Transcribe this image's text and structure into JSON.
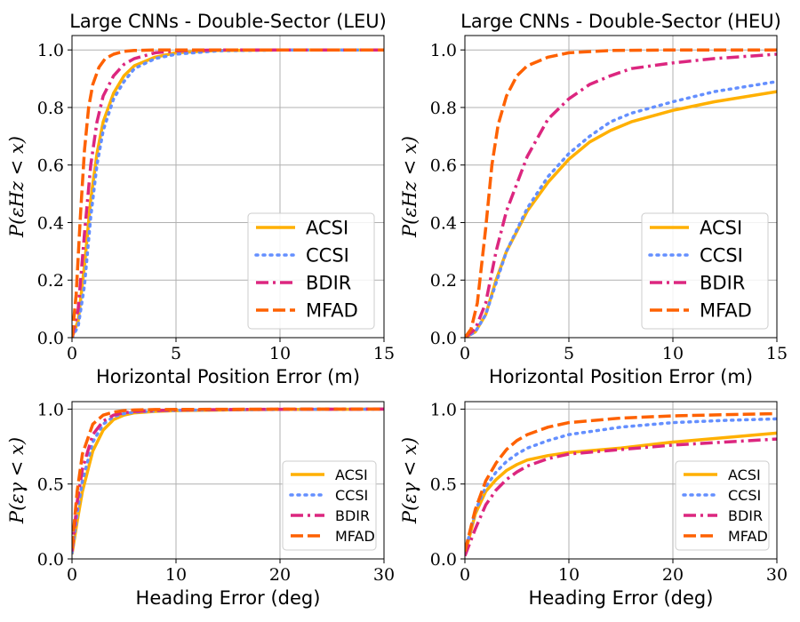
{
  "chart_data": [
    {
      "type": "line",
      "title": "Large CNNs - Double-Sector (LEU)",
      "xlabel": "Horizontal Position Error (m)",
      "ylabel": "P(εHz < x)",
      "xlim": [
        0,
        15
      ],
      "ylim": [
        0,
        1.05
      ],
      "xticks": [
        0,
        5,
        10,
        15
      ],
      "yticks": [
        0.0,
        0.2,
        0.4,
        0.6,
        0.8,
        1.0
      ],
      "xtick_labels": [
        "0",
        "5",
        "10",
        "15"
      ],
      "ytick_labels": [
        "0.0",
        "0.2",
        "0.4",
        "0.6",
        "0.8",
        "1.0"
      ],
      "grid": true,
      "legend": "bottom-right",
      "series": [
        {
          "name": "ACSI",
          "x": [
            0,
            0.3,
            0.6,
            0.9,
            1.2,
            1.5,
            2.0,
            2.5,
            3.0,
            4.0,
            5.0,
            7.0,
            10.0,
            15.0
          ],
          "values": [
            0,
            0.06,
            0.25,
            0.48,
            0.64,
            0.75,
            0.85,
            0.91,
            0.945,
            0.975,
            0.99,
            0.998,
            1.0,
            1.0
          ]
        },
        {
          "name": "CCSI",
          "x": [
            0,
            0.3,
            0.6,
            0.9,
            1.2,
            1.5,
            2.0,
            2.5,
            3.0,
            4.0,
            5.0,
            7.0,
            10.0,
            15.0
          ],
          "values": [
            0,
            0.04,
            0.18,
            0.42,
            0.6,
            0.72,
            0.83,
            0.89,
            0.935,
            0.97,
            0.985,
            0.997,
            1.0,
            1.0
          ]
        },
        {
          "name": "BDIR",
          "x": [
            0,
            0.3,
            0.6,
            0.9,
            1.2,
            1.5,
            2.0,
            2.5,
            3.0,
            4.0,
            5.0,
            7.0,
            10.0,
            15.0
          ],
          "values": [
            0,
            0.1,
            0.36,
            0.6,
            0.75,
            0.84,
            0.91,
            0.95,
            0.97,
            0.99,
            0.997,
            1.0,
            1.0,
            1.0
          ]
        },
        {
          "name": "MFAD",
          "x": [
            0,
            0.2,
            0.4,
            0.6,
            0.8,
            1.0,
            1.3,
            1.6,
            2.0,
            2.5,
            3.0,
            4.0,
            5.0,
            15.0
          ],
          "values": [
            0,
            0.15,
            0.42,
            0.65,
            0.8,
            0.88,
            0.94,
            0.97,
            0.985,
            0.995,
            0.998,
            1.0,
            1.0,
            1.0
          ]
        }
      ]
    },
    {
      "type": "line",
      "title": "Large CNNs - Double-Sector (HEU)",
      "xlabel": "Horizontal Position Error (m)",
      "ylabel": "P(εHz < x)",
      "xlim": [
        0,
        15
      ],
      "ylim": [
        0,
        1.05
      ],
      "xticks": [
        0,
        5,
        10,
        15
      ],
      "yticks": [
        0.0,
        0.2,
        0.4,
        0.6,
        0.8,
        1.0
      ],
      "xtick_labels": [
        "0",
        "5",
        "10",
        "15"
      ],
      "ytick_labels": [
        "0.0",
        "0.2",
        "0.4",
        "0.6",
        "0.8",
        "1.0"
      ],
      "grid": true,
      "legend": "bottom-right",
      "series": [
        {
          "name": "ACSI",
          "x": [
            0,
            0.5,
            1.0,
            1.5,
            2.0,
            3.0,
            4.0,
            5.0,
            6.0,
            7.0,
            8.0,
            10.0,
            12.0,
            15.0
          ],
          "values": [
            0,
            0.02,
            0.08,
            0.2,
            0.3,
            0.44,
            0.54,
            0.62,
            0.68,
            0.72,
            0.75,
            0.79,
            0.82,
            0.855
          ]
        },
        {
          "name": "CCSI",
          "x": [
            0,
            0.5,
            1.0,
            1.5,
            2.0,
            3.0,
            4.0,
            5.0,
            6.0,
            7.0,
            8.0,
            10.0,
            12.0,
            15.0
          ],
          "values": [
            0,
            0.02,
            0.08,
            0.19,
            0.3,
            0.45,
            0.56,
            0.64,
            0.7,
            0.75,
            0.78,
            0.82,
            0.855,
            0.89
          ]
        },
        {
          "name": "BDIR",
          "x": [
            0,
            0.5,
            1.0,
            1.5,
            2.0,
            3.0,
            4.0,
            5.0,
            6.0,
            7.0,
            8.0,
            10.0,
            12.0,
            15.0
          ],
          "values": [
            0,
            0.03,
            0.12,
            0.3,
            0.44,
            0.63,
            0.76,
            0.83,
            0.88,
            0.91,
            0.935,
            0.955,
            0.97,
            0.985
          ]
        },
        {
          "name": "MFAD",
          "x": [
            0,
            0.3,
            0.6,
            1.0,
            1.3,
            1.6,
            2.0,
            2.5,
            3.0,
            4.0,
            5.0,
            7.0,
            10.0,
            15.0
          ],
          "values": [
            0,
            0.03,
            0.12,
            0.38,
            0.6,
            0.74,
            0.84,
            0.91,
            0.945,
            0.975,
            0.99,
            0.998,
            1.0,
            1.0
          ]
        }
      ]
    },
    {
      "type": "line",
      "title": "",
      "xlabel": "Heading Error (deg)",
      "ylabel": "P(εγ < x)",
      "xlim": [
        0,
        30
      ],
      "ylim": [
        0,
        1.05
      ],
      "xticks": [
        0,
        10,
        20,
        30
      ],
      "yticks": [
        0.0,
        0.5,
        1.0
      ],
      "xtick_labels": [
        "0",
        "10",
        "20",
        "30"
      ],
      "ytick_labels": [
        "0.0",
        "0.5",
        "1.0"
      ],
      "grid": true,
      "legend": "bottom-right",
      "series": [
        {
          "name": "ACSI",
          "x": [
            0,
            0.5,
            1.0,
            2.0,
            3.0,
            4.0,
            5.0,
            6.0,
            8.0,
            10.0,
            15.0,
            20.0,
            30.0
          ],
          "values": [
            0.03,
            0.25,
            0.45,
            0.72,
            0.86,
            0.93,
            0.96,
            0.975,
            0.985,
            0.99,
            0.995,
            0.998,
            1.0
          ]
        },
        {
          "name": "CCSI",
          "x": [
            0,
            0.5,
            1.0,
            2.0,
            3.0,
            4.0,
            5.0,
            6.0,
            8.0,
            10.0,
            15.0,
            20.0,
            30.0
          ],
          "values": [
            0.04,
            0.3,
            0.52,
            0.78,
            0.9,
            0.95,
            0.97,
            0.98,
            0.988,
            0.992,
            0.996,
            0.998,
            1.0
          ]
        },
        {
          "name": "BDIR",
          "x": [
            0,
            0.5,
            1.0,
            2.0,
            3.0,
            4.0,
            5.0,
            6.0,
            8.0,
            10.0,
            15.0,
            20.0,
            30.0
          ],
          "values": [
            0.05,
            0.38,
            0.6,
            0.83,
            0.92,
            0.96,
            0.975,
            0.985,
            0.99,
            0.994,
            0.997,
            0.999,
            1.0
          ]
        },
        {
          "name": "MFAD",
          "x": [
            0,
            0.5,
            1.0,
            2.0,
            3.0,
            4.0,
            5.0,
            6.0,
            8.0,
            10.0,
            15.0,
            20.0,
            30.0
          ],
          "values": [
            0.07,
            0.45,
            0.7,
            0.9,
            0.96,
            0.98,
            0.99,
            0.994,
            0.997,
            0.998,
            0.999,
            1.0,
            1.0
          ]
        }
      ]
    },
    {
      "type": "line",
      "title": "",
      "xlabel": "Heading Error (deg)",
      "ylabel": "P(εγ < x)",
      "xlim": [
        0,
        30
      ],
      "ylim": [
        0,
        1.05
      ],
      "xticks": [
        0,
        10,
        20,
        30
      ],
      "yticks": [
        0.0,
        0.5,
        1.0
      ],
      "xtick_labels": [
        "0",
        "10",
        "20",
        "30"
      ],
      "ytick_labels": [
        "0.0",
        "0.5",
        "1.0"
      ],
      "grid": true,
      "legend": "bottom-right",
      "series": [
        {
          "name": "ACSI",
          "x": [
            0,
            1.0,
            2.0,
            3.0,
            4.0,
            5.0,
            6.0,
            8.0,
            10.0,
            15.0,
            20.0,
            25.0,
            30.0
          ],
          "values": [
            0.03,
            0.3,
            0.45,
            0.53,
            0.59,
            0.63,
            0.66,
            0.69,
            0.71,
            0.74,
            0.78,
            0.81,
            0.84
          ]
        },
        {
          "name": "CCSI",
          "x": [
            0,
            1.0,
            2.0,
            3.0,
            4.0,
            5.0,
            6.0,
            8.0,
            10.0,
            15.0,
            20.0,
            25.0,
            30.0
          ],
          "values": [
            0.04,
            0.32,
            0.48,
            0.58,
            0.65,
            0.7,
            0.74,
            0.79,
            0.83,
            0.88,
            0.91,
            0.925,
            0.935
          ]
        },
        {
          "name": "BDIR",
          "x": [
            0,
            1.0,
            2.0,
            3.0,
            4.0,
            5.0,
            6.0,
            8.0,
            10.0,
            15.0,
            20.0,
            25.0,
            30.0
          ],
          "values": [
            0.02,
            0.2,
            0.36,
            0.46,
            0.53,
            0.58,
            0.62,
            0.67,
            0.7,
            0.73,
            0.76,
            0.78,
            0.8
          ]
        },
        {
          "name": "MFAD",
          "x": [
            0,
            1.0,
            2.0,
            3.0,
            4.0,
            5.0,
            6.0,
            8.0,
            10.0,
            15.0,
            20.0,
            25.0,
            30.0
          ],
          "values": [
            0.05,
            0.33,
            0.52,
            0.64,
            0.73,
            0.79,
            0.83,
            0.88,
            0.91,
            0.94,
            0.955,
            0.963,
            0.97
          ]
        }
      ]
    }
  ],
  "series_colors": {
    "ACSI": "#FFB000",
    "CCSI": "#648FFF",
    "BDIR": "#DC267F",
    "MFAD": "#FE6100"
  },
  "series_styles": {
    "ACSI": "solid",
    "CCSI": "dotted",
    "BDIR": "dashdot",
    "MFAD": "dashed"
  }
}
